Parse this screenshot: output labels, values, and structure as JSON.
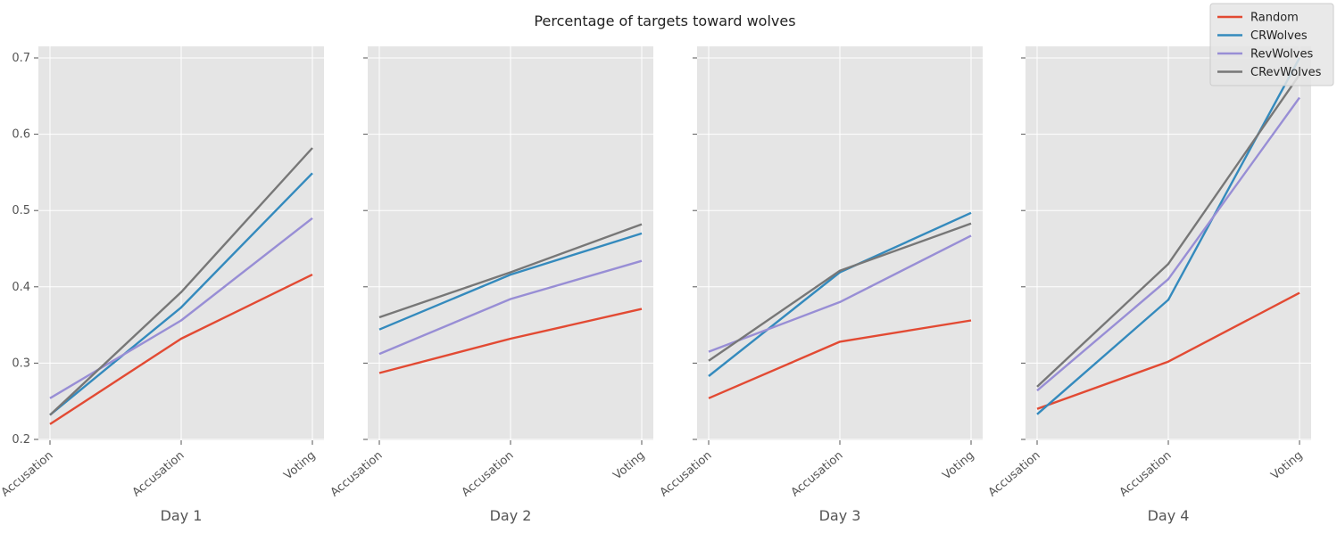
{
  "chart_data": {
    "type": "line",
    "title": "Percentage of targets toward wolves",
    "ylim": [
      0.2,
      0.7
    ],
    "yticks": [
      "0.2",
      "0.3",
      "0.4",
      "0.5",
      "0.6",
      "0.7"
    ],
    "grid": true,
    "legend_position": "top-right",
    "categories": [
      "Accusation",
      "Accusation",
      "Voting"
    ],
    "series_style": [
      {
        "name": "Random",
        "color": "#E24A33"
      },
      {
        "name": "CRWolves",
        "color": "#348ABD"
      },
      {
        "name": "RevWolves",
        "color": "#988ED5"
      },
      {
        "name": "CRevWolves",
        "color": "#777777"
      }
    ],
    "panels": [
      {
        "xlabel": "Day 1",
        "series": [
          {
            "name": "Random",
            "values": [
              0.22,
              0.332,
              0.416
            ]
          },
          {
            "name": "CRWolves",
            "values": [
              0.232,
              0.373,
              0.549
            ]
          },
          {
            "name": "RevWolves",
            "values": [
              0.254,
              0.356,
              0.49
            ]
          },
          {
            "name": "CRevWolves",
            "values": [
              0.232,
              0.393,
              0.582
            ]
          }
        ]
      },
      {
        "xlabel": "Day 2",
        "series": [
          {
            "name": "Random",
            "values": [
              0.287,
              0.332,
              0.371
            ]
          },
          {
            "name": "CRWolves",
            "values": [
              0.344,
              0.416,
              0.47
            ]
          },
          {
            "name": "RevWolves",
            "values": [
              0.312,
              0.384,
              0.434
            ]
          },
          {
            "name": "CRevWolves",
            "values": [
              0.36,
              0.419,
              0.482
            ]
          }
        ]
      },
      {
        "xlabel": "Day 3",
        "series": [
          {
            "name": "Random",
            "values": [
              0.254,
              0.328,
              0.356
            ]
          },
          {
            "name": "CRWolves",
            "values": [
              0.283,
              0.419,
              0.497
            ]
          },
          {
            "name": "RevWolves",
            "values": [
              0.315,
              0.38,
              0.467
            ]
          },
          {
            "name": "CRevWolves",
            "values": [
              0.303,
              0.421,
              0.483
            ]
          }
        ]
      },
      {
        "xlabel": "Day 4",
        "series": [
          {
            "name": "Random",
            "values": [
              0.24,
              0.302,
              0.392
            ]
          },
          {
            "name": "CRWolves",
            "values": [
              0.233,
              0.383,
              0.7
            ]
          },
          {
            "name": "RevWolves",
            "values": [
              0.264,
              0.41,
              0.648
            ]
          },
          {
            "name": "CRevWolves",
            "values": [
              0.269,
              0.43,
              0.678
            ]
          }
        ]
      }
    ]
  }
}
